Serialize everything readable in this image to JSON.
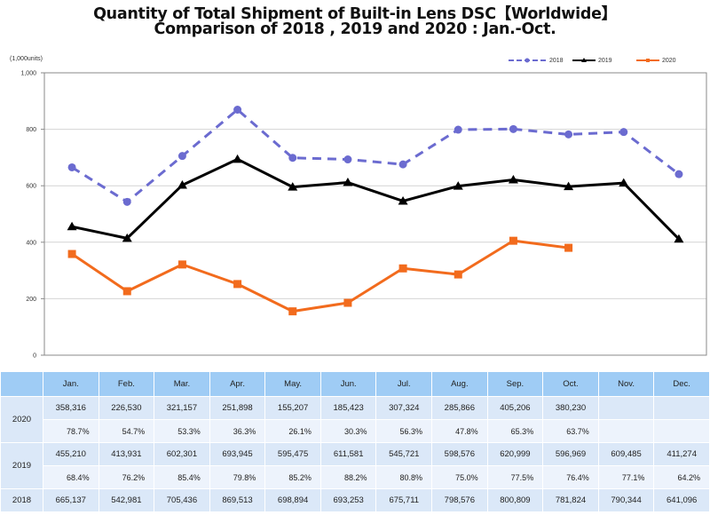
{
  "chart_data": {
    "type": "line",
    "title": "Quantity of Total Shipment of Built-in Lens DSC【Worldwide】",
    "subtitle": "Comparison of 2018 , 2019 and 2020 : Jan.-Oct.",
    "unit_label": "(1,000units)",
    "xlabel": "",
    "ylabel": "",
    "ylim": [
      0,
      1000
    ],
    "yticks": [
      0,
      200,
      400,
      600,
      800,
      1000
    ],
    "ytick_labels": [
      "0",
      "200",
      "400",
      "600",
      "800",
      "1,000"
    ],
    "grid": true,
    "legend_position": "top-right",
    "categories": [
      "Jan.",
      "Feb.",
      "Mar.",
      "Apr.",
      "May.",
      "Jun.",
      "Jul.",
      "Aug.",
      "Sep.",
      "Oct.",
      "Nov.",
      "Dec."
    ],
    "series": [
      {
        "name": "2018",
        "color": "#6b6bd0",
        "style": "dashed",
        "marker": "circle",
        "values": [
          665.137,
          542.981,
          705.436,
          869.513,
          698.894,
          693.253,
          675.711,
          798.576,
          800.809,
          781.824,
          790.344,
          641.096
        ]
      },
      {
        "name": "2019",
        "color": "#000000",
        "style": "solid",
        "marker": "triangle",
        "values": [
          455.21,
          413.931,
          602.301,
          693.945,
          595.475,
          611.581,
          545.721,
          598.576,
          620.999,
          596.969,
          609.485,
          411.274
        ]
      },
      {
        "name": "2020",
        "color": "#f26b1d",
        "style": "solid",
        "marker": "square",
        "values": [
          358.316,
          226.53,
          321.157,
          251.898,
          155.207,
          185.423,
          307.324,
          285.866,
          405.206,
          380.23,
          null,
          null
        ]
      }
    ]
  },
  "table": {
    "headers": [
      "",
      "Jan.",
      "Feb.",
      "Mar.",
      "Apr.",
      "May.",
      "Jun.",
      "Jul.",
      "Aug.",
      "Sep.",
      "Oct.",
      "Nov.",
      "Dec."
    ],
    "rows": [
      {
        "year": "2020",
        "values": [
          "358,316",
          "226,530",
          "321,157",
          "251,898",
          "155,207",
          "185,423",
          "307,324",
          "285,866",
          "405,206",
          "380,230",
          "",
          ""
        ],
        "pct": [
          "78.7%",
          "54.7%",
          "53.3%",
          "36.3%",
          "26.1%",
          "30.3%",
          "56.3%",
          "47.8%",
          "65.3%",
          "63.7%",
          "",
          ""
        ]
      },
      {
        "year": "2019",
        "values": [
          "455,210",
          "413,931",
          "602,301",
          "693,945",
          "595,475",
          "611,581",
          "545,721",
          "598,576",
          "620,999",
          "596,969",
          "609,485",
          "411,274"
        ],
        "pct": [
          "68.4%",
          "76.2%",
          "85.4%",
          "79.8%",
          "85.2%",
          "88.2%",
          "80.8%",
          "75.0%",
          "77.5%",
          "76.4%",
          "77.1%",
          "64.2%"
        ]
      },
      {
        "year": "2018",
        "values": [
          "665,137",
          "542,981",
          "705,436",
          "869,513",
          "698,894",
          "693,253",
          "675,711",
          "798,576",
          "800,809",
          "781,824",
          "790,344",
          "641,096"
        ]
      }
    ]
  }
}
